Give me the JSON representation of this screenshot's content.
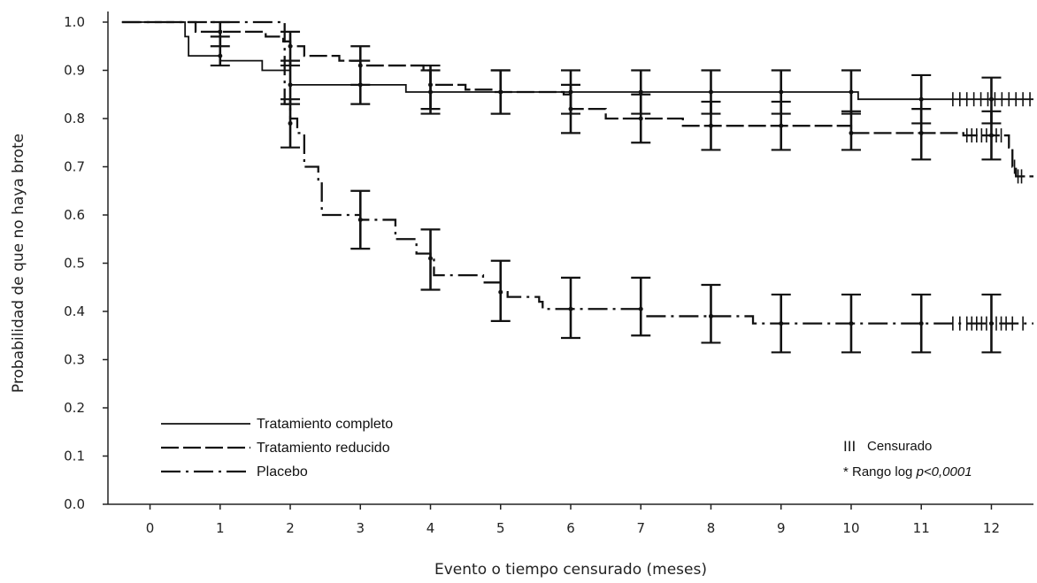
{
  "chart_data": {
    "type": "line",
    "title": "",
    "xlabel": "Evento o tiempo censurado (meses)",
    "ylabel": "Probabilidad de que no haya brote",
    "xlim": [
      -0.6,
      12.6
    ],
    "ylim": [
      0.0,
      1.0
    ],
    "x_ticks": [
      0,
      1,
      2,
      3,
      4,
      5,
      6,
      7,
      8,
      9,
      10,
      11,
      12
    ],
    "y_ticks": [
      "0.0",
      "0.1",
      "0.2",
      "0.3",
      "0.4",
      "0.5",
      "0.6",
      "0.7",
      "0.8",
      "0.9",
      "1.0"
    ],
    "grid": false,
    "legend_position": "bottom-left",
    "series": [
      {
        "name": "Tratamiento completo",
        "style": "solid",
        "steps": [
          [
            -0.4,
            1.0
          ],
          [
            0.45,
            1.0
          ],
          [
            0.5,
            0.97
          ],
          [
            0.55,
            0.93
          ],
          [
            0.95,
            0.93
          ],
          [
            1.0,
            0.92
          ],
          [
            1.55,
            0.92
          ],
          [
            1.6,
            0.9
          ],
          [
            2.0,
            0.87
          ],
          [
            3.6,
            0.87
          ],
          [
            3.65,
            0.855
          ],
          [
            10.0,
            0.855
          ],
          [
            10.1,
            0.84
          ],
          [
            12.6,
            0.84
          ]
        ],
        "ci": [
          {
            "x": 1,
            "y": 0.93,
            "low": 0.91,
            "high": 0.97
          },
          {
            "x": 2,
            "y": 0.87,
            "low": 0.83,
            "high": 0.92
          },
          {
            "x": 3,
            "y": 0.87,
            "low": 0.83,
            "high": 0.92
          },
          {
            "x": 4,
            "y": 0.855,
            "low": 0.81,
            "high": 0.9
          },
          {
            "x": 5,
            "y": 0.855,
            "low": 0.81,
            "high": 0.9
          },
          {
            "x": 6,
            "y": 0.855,
            "low": 0.81,
            "high": 0.9
          },
          {
            "x": 7,
            "y": 0.855,
            "low": 0.81,
            "high": 0.9
          },
          {
            "x": 8,
            "y": 0.855,
            "low": 0.81,
            "high": 0.9
          },
          {
            "x": 9,
            "y": 0.855,
            "low": 0.81,
            "high": 0.9
          },
          {
            "x": 10,
            "y": 0.855,
            "low": 0.81,
            "high": 0.9
          },
          {
            "x": 11,
            "y": 0.84,
            "low": 0.79,
            "high": 0.89
          },
          {
            "x": 12,
            "y": 0.84,
            "low": 0.79,
            "high": 0.885
          }
        ],
        "censor_marks": [
          11.45,
          11.55,
          11.65,
          11.75,
          11.85,
          11.95,
          12.05,
          12.15,
          12.25,
          12.35,
          12.45,
          12.55
        ]
      },
      {
        "name": "Tratamiento reducido",
        "style": "dashed",
        "steps": [
          [
            -0.4,
            1.0
          ],
          [
            0.6,
            1.0
          ],
          [
            0.65,
            0.98
          ],
          [
            1.6,
            0.98
          ],
          [
            1.65,
            0.97
          ],
          [
            1.9,
            0.96
          ],
          [
            2.0,
            0.95
          ],
          [
            2.2,
            0.93
          ],
          [
            2.7,
            0.92
          ],
          [
            3.0,
            0.91
          ],
          [
            3.9,
            0.9
          ],
          [
            4.0,
            0.87
          ],
          [
            4.5,
            0.86
          ],
          [
            4.9,
            0.855
          ],
          [
            5.9,
            0.85
          ],
          [
            6.0,
            0.82
          ],
          [
            6.4,
            0.82
          ],
          [
            6.5,
            0.8
          ],
          [
            7.5,
            0.8
          ],
          [
            7.6,
            0.785
          ],
          [
            9.9,
            0.785
          ],
          [
            10.0,
            0.77
          ],
          [
            11.5,
            0.77
          ],
          [
            11.6,
            0.765
          ],
          [
            12.2,
            0.765
          ],
          [
            12.25,
            0.74
          ],
          [
            12.3,
            0.7
          ],
          [
            12.35,
            0.68
          ],
          [
            12.6,
            0.68
          ]
        ],
        "ci": [
          {
            "x": 1,
            "y": 0.98,
            "low": 0.95,
            "high": 1.0
          },
          {
            "x": 2,
            "y": 0.95,
            "low": 0.91,
            "high": 0.98
          },
          {
            "x": 3,
            "y": 0.91,
            "low": 0.87,
            "high": 0.95
          },
          {
            "x": 4,
            "y": 0.87,
            "low": 0.82,
            "high": 0.91
          },
          {
            "x": 5,
            "y": 0.855,
            "low": 0.81,
            "high": 0.9
          },
          {
            "x": 6,
            "y": 0.82,
            "low": 0.77,
            "high": 0.87
          },
          {
            "x": 7,
            "y": 0.8,
            "low": 0.75,
            "high": 0.85
          },
          {
            "x": 8,
            "y": 0.785,
            "low": 0.735,
            "high": 0.835
          },
          {
            "x": 9,
            "y": 0.785,
            "low": 0.735,
            "high": 0.835
          },
          {
            "x": 10,
            "y": 0.77,
            "low": 0.735,
            "high": 0.815
          },
          {
            "x": 11,
            "y": 0.77,
            "low": 0.715,
            "high": 0.82
          },
          {
            "x": 12,
            "y": 0.765,
            "low": 0.715,
            "high": 0.815
          }
        ],
        "censor_marks": [
          11.65,
          11.72,
          11.79,
          11.86,
          11.93,
          12.0,
          12.07,
          12.14,
          12.33,
          12.38,
          12.43
        ]
      },
      {
        "name": "Placebo",
        "style": "dashdot",
        "steps": [
          [
            -0.4,
            1.0
          ],
          [
            1.9,
            1.0
          ],
          [
            1.92,
            0.83
          ],
          [
            2.0,
            0.8
          ],
          [
            2.1,
            0.77
          ],
          [
            2.2,
            0.7
          ],
          [
            2.4,
            0.67
          ],
          [
            2.45,
            0.6
          ],
          [
            2.9,
            0.6
          ],
          [
            3.0,
            0.59
          ],
          [
            3.5,
            0.55
          ],
          [
            3.8,
            0.52
          ],
          [
            4.0,
            0.51
          ],
          [
            4.05,
            0.475
          ],
          [
            4.7,
            0.475
          ],
          [
            4.75,
            0.46
          ],
          [
            5.0,
            0.44
          ],
          [
            5.1,
            0.43
          ],
          [
            5.5,
            0.43
          ],
          [
            5.55,
            0.42
          ],
          [
            5.6,
            0.405
          ],
          [
            6.9,
            0.405
          ],
          [
            7.0,
            0.39
          ],
          [
            8.5,
            0.39
          ],
          [
            8.6,
            0.375
          ],
          [
            12.6,
            0.375
          ]
        ],
        "ci": [
          {
            "x": 2,
            "y": 0.79,
            "low": 0.74,
            "high": 0.84
          },
          {
            "x": 3,
            "y": 0.59,
            "low": 0.53,
            "high": 0.65
          },
          {
            "x": 4,
            "y": 0.51,
            "low": 0.445,
            "high": 0.57
          },
          {
            "x": 5,
            "y": 0.44,
            "low": 0.38,
            "high": 0.505
          },
          {
            "x": 6,
            "y": 0.405,
            "low": 0.345,
            "high": 0.47
          },
          {
            "x": 7,
            "y": 0.405,
            "low": 0.35,
            "high": 0.47
          },
          {
            "x": 8,
            "y": 0.39,
            "low": 0.335,
            "high": 0.455
          },
          {
            "x": 9,
            "y": 0.375,
            "low": 0.315,
            "high": 0.435
          },
          {
            "x": 10,
            "y": 0.375,
            "low": 0.315,
            "high": 0.435
          },
          {
            "x": 11,
            "y": 0.375,
            "low": 0.315,
            "high": 0.435
          },
          {
            "x": 12,
            "y": 0.375,
            "low": 0.315,
            "high": 0.435
          }
        ],
        "censor_marks": [
          11.45,
          11.55,
          11.65,
          11.72,
          11.79,
          11.86,
          11.93,
          12.0,
          12.07,
          12.14,
          12.21,
          12.3,
          12.45
        ]
      }
    ],
    "annotations": {
      "censored_symbol": "III",
      "censored_label": "Censurado",
      "test_prefix": "* Rango log ",
      "test_value": "p<0,0001"
    }
  }
}
